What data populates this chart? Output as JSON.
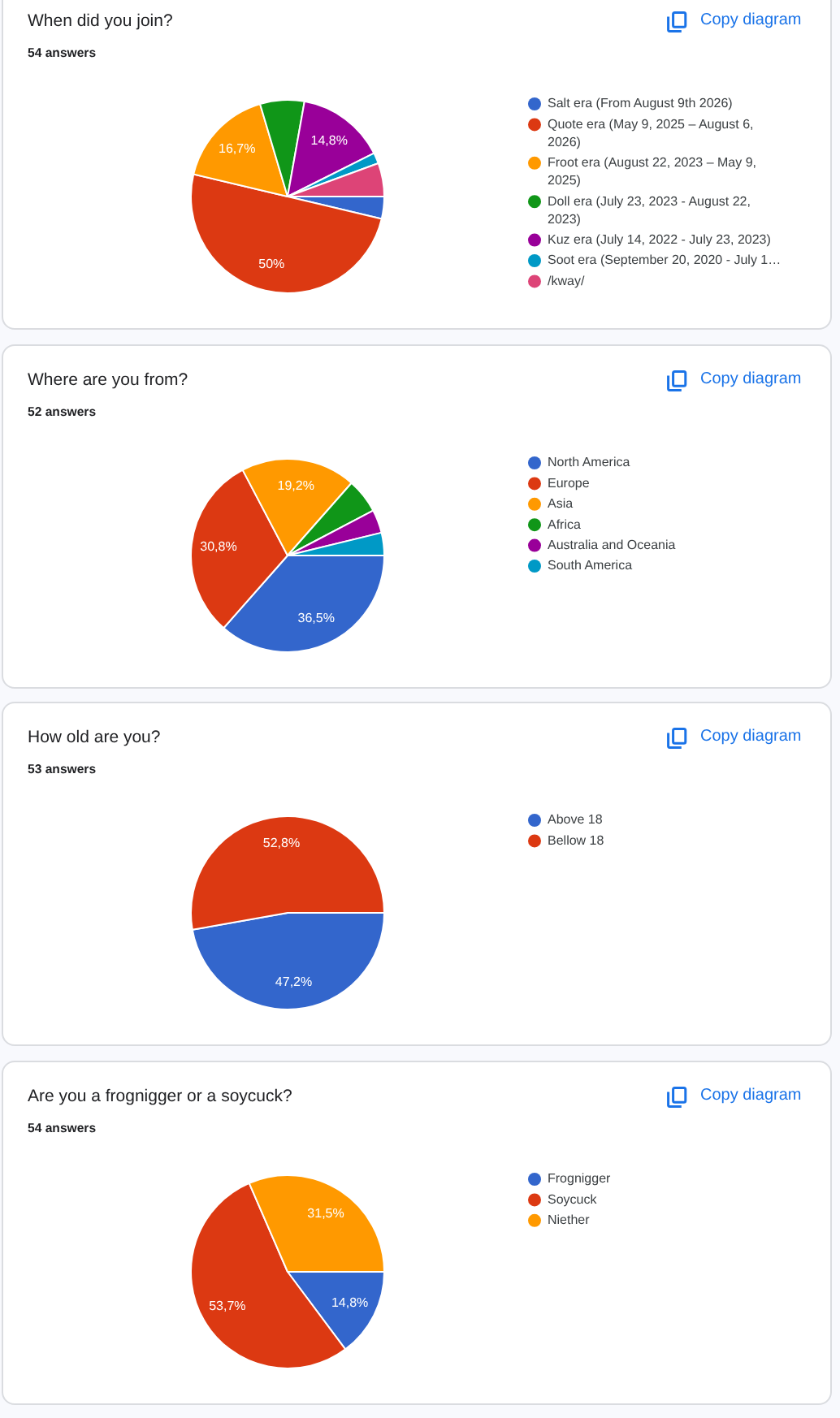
{
  "chart_data": [
    {
      "type": "pie",
      "title": "When did you join?",
      "subtitle": "54 answers",
      "annotations": [
        "Copy diagram"
      ],
      "categories": [
        "Salt era (From August 9th 2026)",
        "Quote era (May 9, 2025 – August 6, 2026)",
        "Froot era (August 22, 2023 – May 9, 2025)",
        "Doll era (July 23, 2023 - August 22, 2023)",
        "Kuz era (July 14, 2022 - July 23, 2023)",
        "Soot era (September 20, 2020 - July 1…",
        "/kway/"
      ],
      "values": [
        3.7,
        50,
        16.7,
        7.4,
        14.8,
        1.8,
        5.6
      ],
      "colors": [
        "#3366cc",
        "#dc3912",
        "#ff9900",
        "#109618",
        "#990099",
        "#0099c6",
        "#dd4477"
      ],
      "value_labels": [
        null,
        "50%",
        "16,7%",
        null,
        "14,8%",
        null,
        null
      ],
      "legend": "right"
    },
    {
      "type": "pie",
      "title": "Where are you from?",
      "subtitle": "52 answers",
      "annotations": [
        "Copy diagram"
      ],
      "categories": [
        "North America",
        "Europe",
        "Asia",
        "Africa",
        "Australia and Oceania",
        "South America"
      ],
      "values": [
        36.5,
        30.8,
        19.2,
        5.8,
        3.9,
        3.8
      ],
      "colors": [
        "#3366cc",
        "#dc3912",
        "#ff9900",
        "#109618",
        "#990099",
        "#0099c6"
      ],
      "value_labels": [
        "36,5%",
        "30,8%",
        "19,2%",
        null,
        null,
        null
      ],
      "legend": "right"
    },
    {
      "type": "pie",
      "title": "How old are you?",
      "subtitle": "53 answers",
      "annotations": [
        "Copy diagram"
      ],
      "categories": [
        "Above 18",
        "Bellow 18"
      ],
      "values": [
        47.2,
        52.8
      ],
      "colors": [
        "#3366cc",
        "#dc3912"
      ],
      "value_labels": [
        "47,2%",
        "52,8%"
      ],
      "legend": "right"
    },
    {
      "type": "pie",
      "title": "Are you a frognigger or a soycuck?",
      "subtitle": "54 answers",
      "annotations": [
        "Copy diagram"
      ],
      "categories": [
        "Frognigger",
        "Soycuck",
        "Niether"
      ],
      "values": [
        14.8,
        53.7,
        31.5
      ],
      "colors": [
        "#3366cc",
        "#dc3912",
        "#ff9900"
      ],
      "value_labels": [
        "14,8%",
        "53,7%",
        "31,5%"
      ],
      "legend": "right"
    }
  ]
}
